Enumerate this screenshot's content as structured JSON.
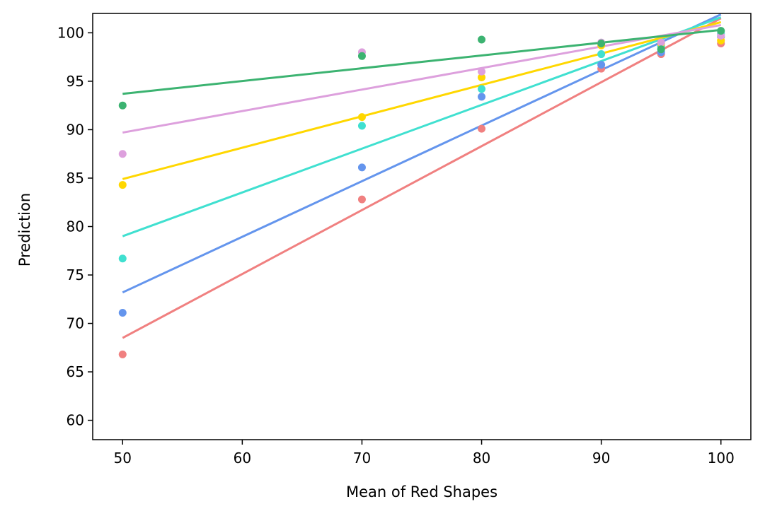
{
  "chart_data": {
    "type": "scatter",
    "title": "",
    "xlabel": "Mean of Red Shapes",
    "ylabel": "Prediction",
    "xlim": [
      47.5,
      102.5
    ],
    "ylim": [
      58,
      102
    ],
    "xticks": [
      50,
      60,
      70,
      80,
      90,
      100
    ],
    "yticks": [
      60,
      65,
      70,
      75,
      80,
      85,
      90,
      95,
      100
    ],
    "grid": false,
    "legend": "none",
    "x": [
      50,
      70,
      80,
      90,
      95,
      100
    ],
    "series": [
      {
        "color": "#f08080",
        "points": [
          50,
          66.8,
          70,
          82.8,
          80,
          90.1,
          90,
          96.3,
          95,
          97.8,
          100,
          98.9
        ],
        "fit": [
          50,
          68.5,
          100,
          101.5
        ]
      },
      {
        "color": "#6495ed",
        "points": [
          50,
          71.1,
          70,
          86.1,
          80,
          93.4,
          90,
          96.7,
          95,
          98.0,
          100,
          99.6
        ],
        "fit": [
          50,
          73.2,
          100,
          101.9
        ]
      },
      {
        "color": "#40e0d0",
        "points": [
          50,
          76.7,
          70,
          90.4,
          80,
          94.2,
          90,
          97.8,
          95,
          98.6,
          100,
          99.9
        ],
        "fit": [
          50,
          79.0,
          100,
          101.6
        ]
      },
      {
        "color": "#ffd700",
        "points": [
          50,
          84.3,
          70,
          91.3,
          80,
          95.4,
          90,
          98.7,
          95,
          98.9,
          100,
          99.2
        ],
        "fit": [
          50,
          84.9,
          100,
          101.1
        ]
      },
      {
        "color": "#dda0dd",
        "points": [
          50,
          87.5,
          70,
          98.0,
          80,
          96.0,
          90,
          99.0,
          95,
          99.0,
          100,
          99.7
        ],
        "fit": [
          50,
          89.7,
          100,
          100.8
        ]
      },
      {
        "color": "#3cb371",
        "points": [
          50,
          92.5,
          70,
          97.6,
          80,
          99.3,
          90,
          98.9,
          95,
          98.3,
          100,
          100.2
        ],
        "fit": [
          50,
          93.7,
          100,
          100.3
        ]
      }
    ]
  }
}
